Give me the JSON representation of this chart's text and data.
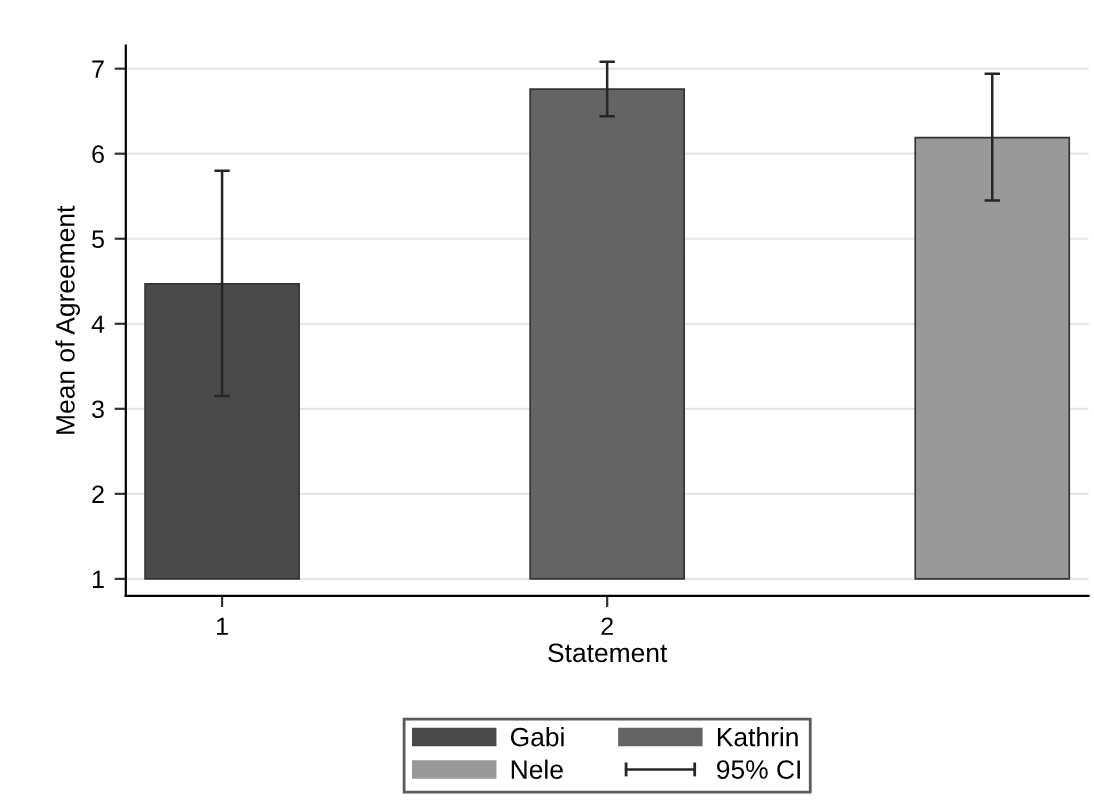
{
  "chart_data": {
    "type": "bar",
    "xlabel": "Statement",
    "ylabel": "Mean of Agreement",
    "xlim": [
      0.75,
      3.25
    ],
    "xticks": [
      1,
      2
    ],
    "ylim": [
      0.8,
      7.27
    ],
    "yticks": [
      1,
      2,
      3,
      4,
      5,
      6,
      7
    ],
    "grid": "y",
    "legend": "bottom",
    "annotations": [
      "95% CI"
    ],
    "series": [
      {
        "name": "Gabi",
        "color": "#4a4a4a",
        "x": [
          1
        ],
        "values": [
          3.47
        ],
        "base": [
          1
        ],
        "errors": [
          [
            3.15,
            5.8
          ]
        ]
      },
      {
        "name": "Kathrin",
        "color": "#646464",
        "x": [
          2
        ],
        "values": [
          5.76
        ],
        "base": [
          1
        ],
        "errors": [
          [
            6.44,
            7.08
          ]
        ]
      },
      {
        "name": "Nele",
        "color": "#999999",
        "x": [
          3
        ],
        "values": [
          5.19
        ],
        "base": [
          1
        ],
        "errors": [
          [
            5.45,
            6.94
          ]
        ]
      }
    ]
  }
}
